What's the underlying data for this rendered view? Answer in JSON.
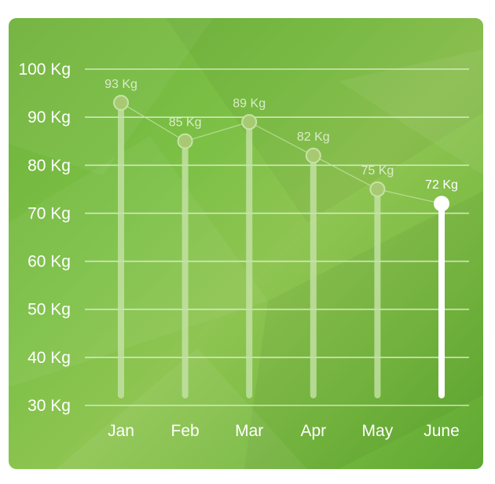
{
  "colors": {
    "background": "#7cc046",
    "grid": "#dff0cf",
    "bar_inactive": "#c6e3a8",
    "bar_active": "#ffffff",
    "label_inactive": "#e4f2d6",
    "label_active": "#ffffff"
  },
  "chart_data": {
    "type": "bar",
    "categories": [
      "Jan",
      "Feb",
      "Mar",
      "Apr",
      "May",
      "June"
    ],
    "values": [
      93,
      85,
      89,
      82,
      75,
      72
    ],
    "value_labels": [
      "93 Kg",
      "85 Kg",
      "89 Kg",
      "82 Kg",
      "75 Kg",
      "72 Kg"
    ],
    "active_index": 5,
    "ylim": [
      30,
      100
    ],
    "yticks": [
      30,
      40,
      50,
      60,
      70,
      80,
      90,
      100
    ],
    "ytick_labels": [
      "30 Kg",
      "40 Kg",
      "50 Kg",
      "60 Kg",
      "70 Kg",
      "80 Kg",
      "90 Kg",
      "100 Kg"
    ],
    "grid": true,
    "trend_line": true
  }
}
